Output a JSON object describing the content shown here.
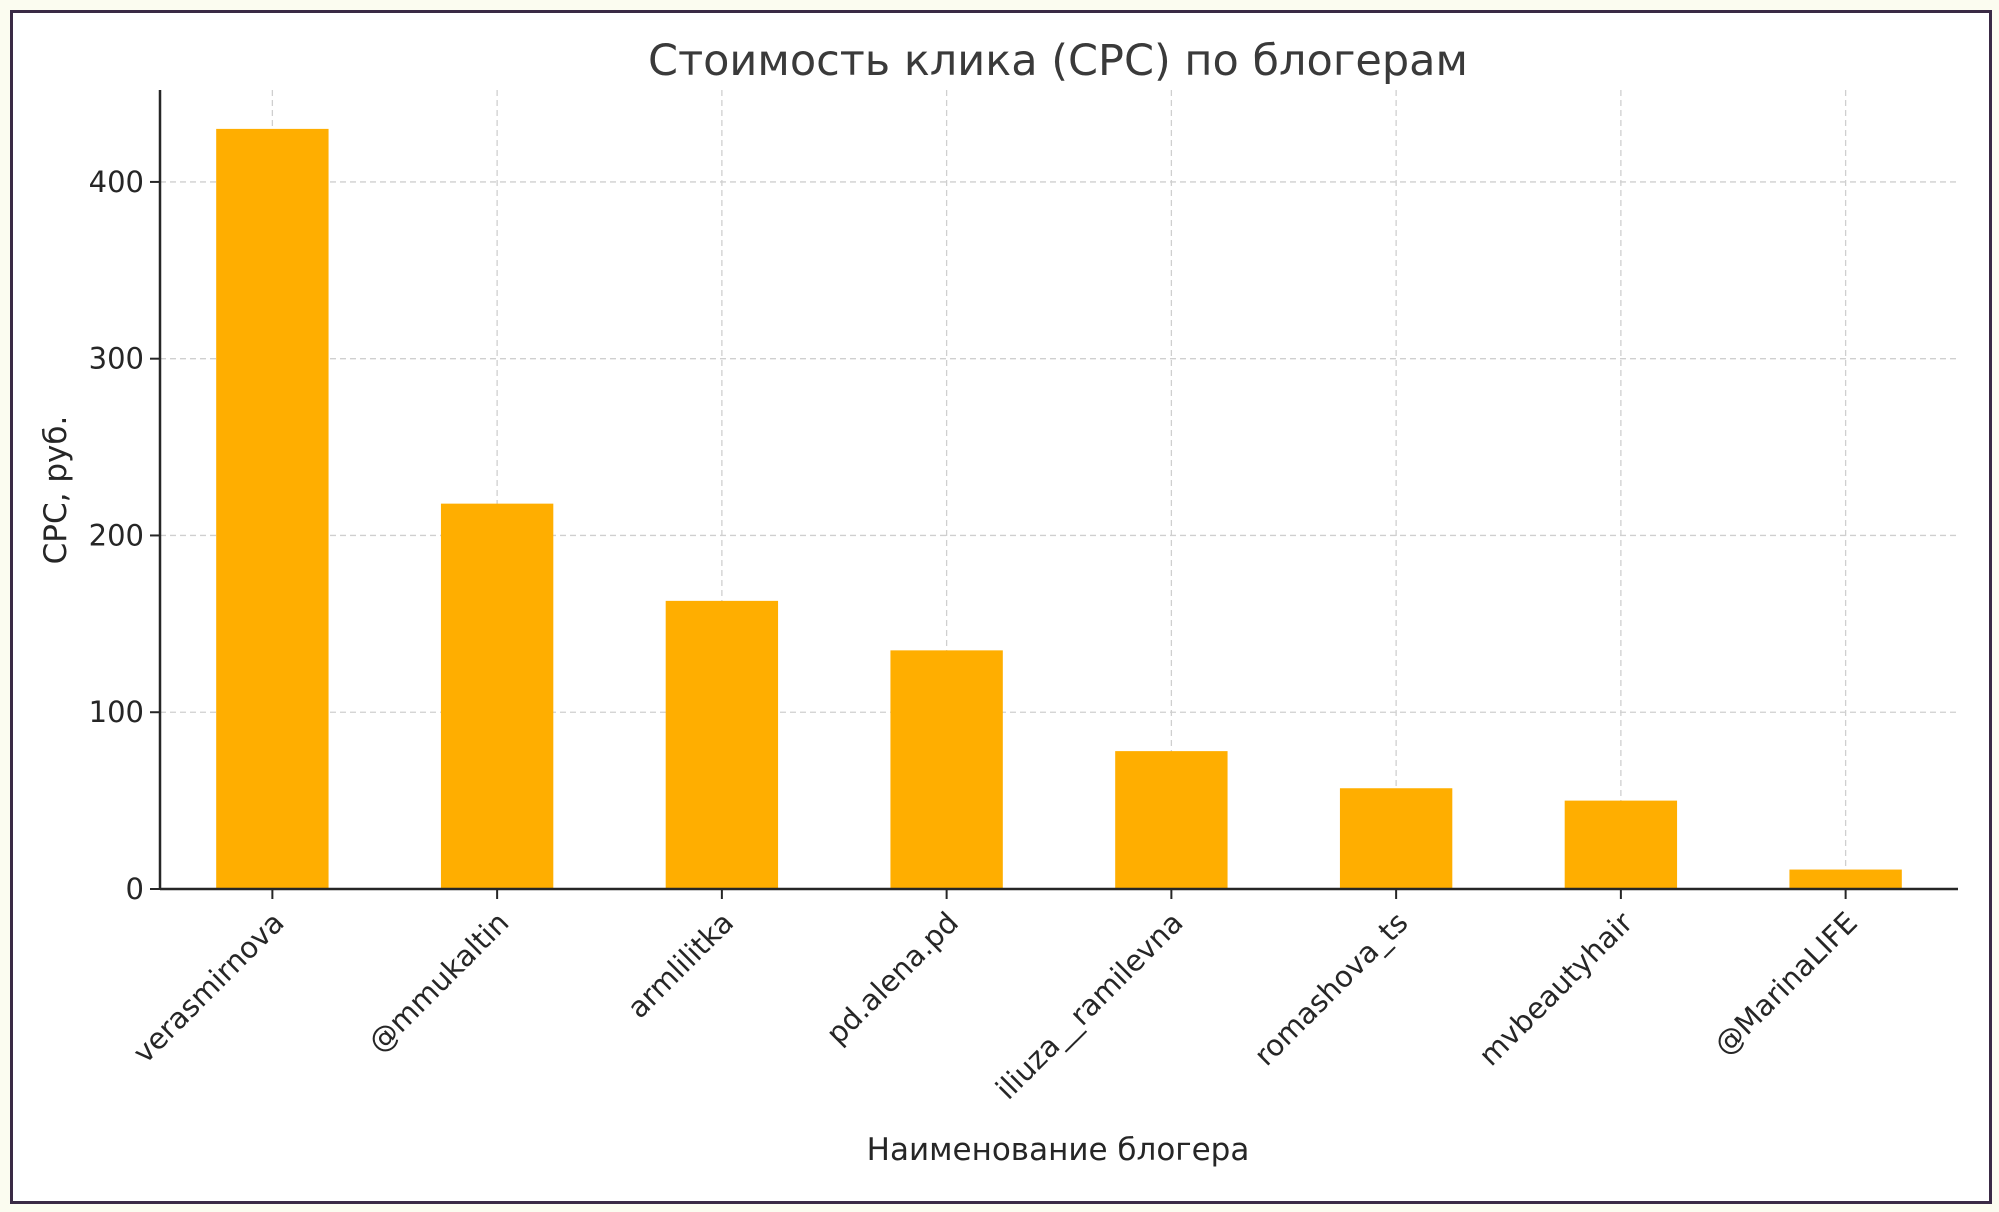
{
  "chart_data": {
    "type": "bar",
    "title": "Стоимость клика (CPC) по блогерам",
    "xlabel": "Наименование блогера",
    "ylabel": "CPC, руб.",
    "categories": [
      "verasmirnova",
      "@mmukaltin",
      "armlilitka",
      "pd.alena.pd",
      "iliuza__ramilevna",
      "romashova_ts",
      "mvbeautyhair",
      "@MarinaLIFE"
    ],
    "values": [
      430,
      218,
      163,
      135,
      78,
      57,
      50,
      11
    ],
    "ylim": [
      0,
      452
    ],
    "yticks": [
      0,
      100,
      200,
      300,
      400
    ],
    "grid": true,
    "bar_color": "#ffae00"
  }
}
